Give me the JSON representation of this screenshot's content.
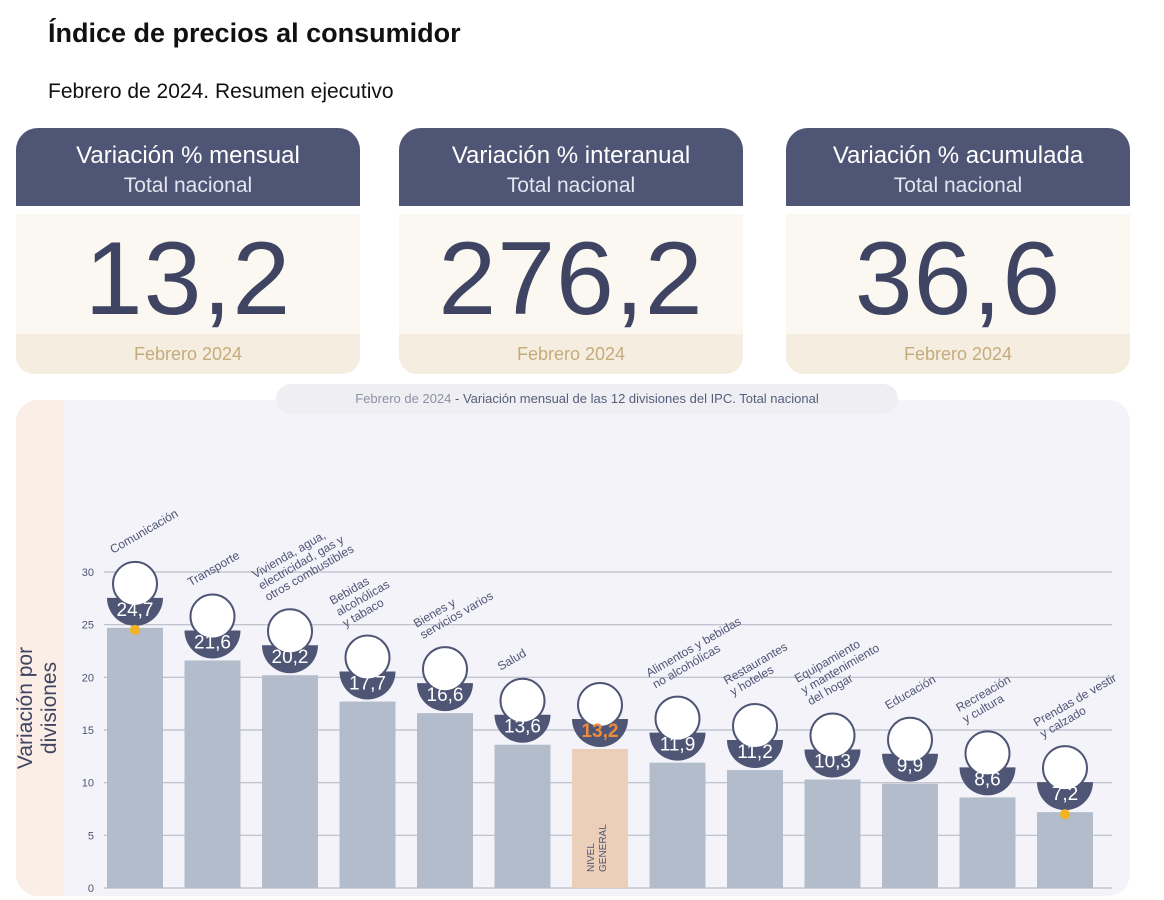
{
  "header": {
    "title": "Índice de precios al consumidor",
    "subtitle": "Febrero de 2024. Resumen ejecutivo"
  },
  "cards": [
    {
      "title": "Variación % mensual",
      "scope": "Total nacional",
      "value": "13,2",
      "period": "Febrero 2024"
    },
    {
      "title": "Variación % interanual",
      "scope": "Total nacional",
      "value": "276,2",
      "period": "Febrero 2024"
    },
    {
      "title": "Variación % acumulada",
      "scope": "Total nacional",
      "value": "36,6",
      "period": "Febrero 2024"
    }
  ],
  "colors": {
    "header": "#4f5575",
    "value_text": "#3f4463",
    "bar": "#b3bccb",
    "bar_highlight": "#ebcfb8",
    "highlight_text": "#f08a3c",
    "marker": "#f2b322"
  },
  "chart_data": {
    "type": "bar",
    "title_period": "Febrero de 2024",
    "title_rest": " - Variación mensual de las 12 divisiones del IPC. Total nacional",
    "ylabel": "Variación por divisiones",
    "ylim": [
      0,
      30
    ],
    "yticks": [
      0,
      5,
      10,
      15,
      20,
      25,
      30
    ],
    "grid": true,
    "categories": [
      {
        "label": [
          "Comunicación"
        ],
        "icon": "phone-icon",
        "highlight": false
      },
      {
        "label": [
          "Transporte"
        ],
        "icon": "car-icon",
        "highlight": false
      },
      {
        "label": [
          "Vivienda, agua,",
          "electricidad, gas y",
          "otros combustibles"
        ],
        "icon": "lightbulb-icon",
        "highlight": false
      },
      {
        "label": [
          "Bebidas",
          "alcohólicas",
          "y tabaco"
        ],
        "icon": "bottle-icon",
        "highlight": false
      },
      {
        "label": [
          "Bienes y",
          "servicios varios"
        ],
        "icon": "scissors-icon",
        "highlight": false
      },
      {
        "label": [
          "Salud"
        ],
        "icon": "medical-cross-icon",
        "highlight": false
      },
      {
        "label": [
          "NIVEL",
          "GENERAL"
        ],
        "icon": "shopping-basket-icon",
        "highlight": true
      },
      {
        "label": [
          "Alimentos y bebidas",
          "no alcohólicas"
        ],
        "icon": "chicken-icon",
        "highlight": false
      },
      {
        "label": [
          "Restaurantes",
          "y hoteles"
        ],
        "icon": "cutlery-icon",
        "highlight": false
      },
      {
        "label": [
          "Equipamiento",
          "y mantenimiento",
          "del hogar"
        ],
        "icon": "washing-machine-icon",
        "highlight": false
      },
      {
        "label": [
          "Educación"
        ],
        "icon": "notebook-icon",
        "highlight": false
      },
      {
        "label": [
          "Recreación",
          "y cultura"
        ],
        "icon": "beach-umbrella-icon",
        "highlight": false
      },
      {
        "label": [
          "Prendas de vestir",
          "y calzado"
        ],
        "icon": "tshirt-icon",
        "highlight": false
      }
    ],
    "values": [
      24.7,
      21.6,
      20.2,
      17.7,
      16.6,
      13.6,
      13.2,
      11.9,
      11.2,
      10.3,
      9.9,
      8.6,
      7.2
    ],
    "value_labels": [
      "24,7",
      "21,6",
      "20,2",
      "17,7",
      "16,6",
      "13,6",
      "13,2",
      "11,9",
      "11,2",
      "10,3",
      "9,9",
      "8,6",
      "7,2"
    ],
    "markers": [
      0,
      12
    ]
  }
}
